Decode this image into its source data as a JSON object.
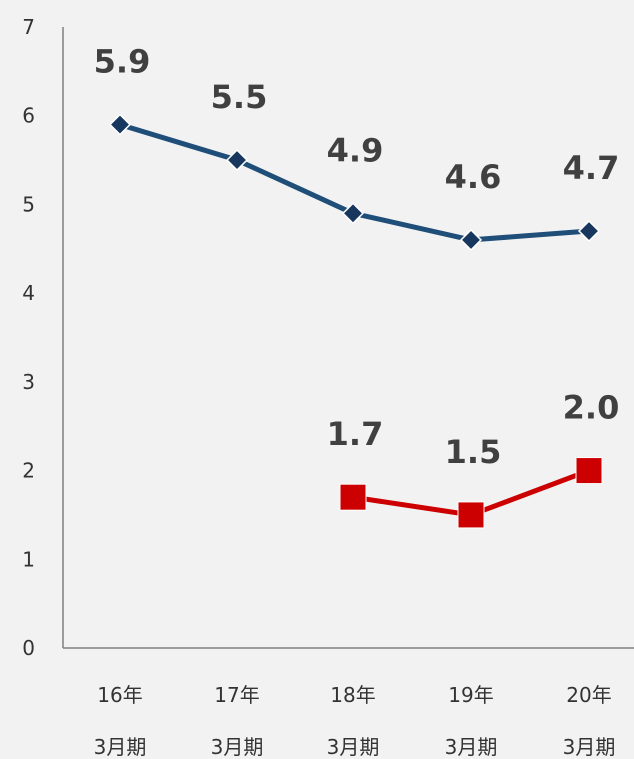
{
  "chart_data": {
    "type": "line",
    "categories": [
      [
        "16年",
        "3月期"
      ],
      [
        "17年",
        "3月期"
      ],
      [
        "18年",
        "3月期"
      ],
      [
        "19年",
        "3月期"
      ],
      [
        "20年",
        "3月期"
      ]
    ],
    "ylim": [
      0,
      7
    ],
    "yticks": [
      "0",
      "1",
      "2",
      "3",
      "4",
      "5",
      "6",
      "7"
    ],
    "grid": false,
    "series": [
      {
        "values": [
          5.9,
          5.5,
          4.9,
          4.6,
          4.7
        ],
        "labels": [
          "5.9",
          "5.5",
          "4.9",
          "4.6",
          "4.7"
        ],
        "color": "#1f4e79",
        "marker": "diamond",
        "marker_color": "#17375e"
      },
      {
        "values": [
          null,
          null,
          1.7,
          1.5,
          2.0
        ],
        "labels": [
          null,
          null,
          "1.7",
          "1.5",
          "2.0"
        ],
        "color": "#cc0000",
        "marker": "square",
        "marker_color": "#cc0000"
      }
    ]
  }
}
